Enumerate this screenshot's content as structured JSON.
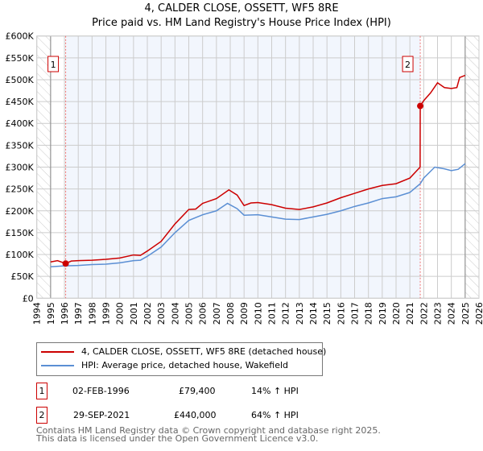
{
  "title": "4, CALDER CLOSE, OSSETT, WF5 8RE",
  "subtitle": "Price paid vs. HM Land Registry's House Price Index (HPI)",
  "chart_data": {
    "type": "line",
    "xlim": [
      1994,
      2026
    ],
    "ylim": [
      0,
      600000
    ],
    "x_ticks": [
      "1994",
      "1995",
      "1996",
      "1997",
      "1998",
      "1999",
      "2000",
      "2001",
      "2002",
      "2003",
      "2004",
      "2005",
      "2006",
      "2007",
      "2008",
      "2009",
      "2010",
      "2011",
      "2012",
      "2013",
      "2014",
      "2015",
      "2016",
      "2017",
      "2018",
      "2019",
      "2020",
      "2021",
      "2022",
      "2023",
      "2024",
      "2025",
      "2026"
    ],
    "y_ticks": [
      {
        "v": 0,
        "label": "£0"
      },
      {
        "v": 50000,
        "label": "£50K"
      },
      {
        "v": 100000,
        "label": "£100K"
      },
      {
        "v": 150000,
        "label": "£150K"
      },
      {
        "v": 200000,
        "label": "£200K"
      },
      {
        "v": 250000,
        "label": "£250K"
      },
      {
        "v": 300000,
        "label": "£300K"
      },
      {
        "v": 350000,
        "label": "£350K"
      },
      {
        "v": 400000,
        "label": "£400K"
      },
      {
        "v": 450000,
        "label": "£450K"
      },
      {
        "v": 500000,
        "label": "£500K"
      },
      {
        "v": 550000,
        "label": "£550K"
      },
      {
        "v": 600000,
        "label": "£600K"
      }
    ],
    "grid": true,
    "hatched_ranges": [
      [
        1994,
        1995
      ],
      [
        2025,
        2026
      ]
    ],
    "shaded_range": [
      1996.09,
      2021.75
    ],
    "series": [
      {
        "name": "4, CALDER CLOSE, OSSETT, WF5 8RE (detached house)",
        "color": "#cc0000",
        "x": [
          1995,
          1995.5,
          1996.09,
          1996.5,
          1997,
          1998,
          1999,
          2000,
          2001,
          2001.5,
          2002,
          2003,
          2004,
          2005,
          2005.5,
          2006,
          2007,
          2007.9,
          2008.5,
          2009,
          2009.5,
          2010,
          2011,
          2012,
          2013,
          2014,
          2015,
          2016,
          2017,
          2018,
          2019,
          2020,
          2021,
          2021.74,
          2021.75,
          2022,
          2022.5,
          2023,
          2023.5,
          2024,
          2024.4,
          2024.6,
          2025
        ],
        "y": [
          83000,
          86000,
          79400,
          85000,
          86000,
          87000,
          89000,
          92000,
          99000,
          98000,
          108000,
          130000,
          170000,
          203000,
          204000,
          217000,
          228000,
          248000,
          236000,
          212000,
          218000,
          219000,
          214000,
          206000,
          203000,
          209000,
          218000,
          230000,
          240000,
          250000,
          258000,
          262000,
          275000,
          300000,
          440000,
          452000,
          470000,
          493000,
          482000,
          480000,
          482000,
          505000,
          510000
        ]
      },
      {
        "name": "HPI: Average price, detached house, Wakefield",
        "color": "#5b8fd4",
        "x": [
          1995,
          1996,
          1997,
          1998,
          1999,
          2000,
          2001,
          2001.5,
          2002,
          2003,
          2004,
          2005,
          2006,
          2007,
          2007.8,
          2008.5,
          2009,
          2010,
          2011,
          2012,
          2013,
          2014,
          2015,
          2016,
          2017,
          2018,
          2019,
          2020,
          2021,
          2021.75,
          2022,
          2022.8,
          2023.5,
          2024,
          2024.5,
          2025
        ],
        "y": [
          72000,
          74000,
          75000,
          77000,
          78000,
          81000,
          86000,
          87000,
          96000,
          117000,
          150000,
          178000,
          191000,
          200000,
          217000,
          205000,
          190000,
          191000,
          186000,
          181000,
          180000,
          186000,
          192000,
          200000,
          210000,
          218000,
          228000,
          232000,
          242000,
          262000,
          275000,
          300000,
          296000,
          292000,
          295000,
          308000
        ]
      }
    ],
    "annotations": [
      {
        "label": "1",
        "x": 1996.09,
        "y": 79400
      },
      {
        "label": "2",
        "x": 2021.75,
        "y": 440000
      }
    ]
  },
  "legend": {
    "items": [
      {
        "label": "4, CALDER CLOSE, OSSETT, WF5 8RE (detached house)",
        "color": "#cc0000"
      },
      {
        "label": "HPI: Average price, detached house, Wakefield",
        "color": "#5b8fd4"
      }
    ]
  },
  "sales": [
    {
      "num": "1",
      "date": "02-FEB-1996",
      "price": "£79,400",
      "hpi": "14% ↑ HPI"
    },
    {
      "num": "2",
      "date": "29-SEP-2021",
      "price": "£440,000",
      "hpi": "64% ↑ HPI"
    }
  ],
  "footer": {
    "line1": "Contains HM Land Registry data © Crown copyright and database right 2025.",
    "line2": "This data is licensed under the Open Government Licence v3.0."
  }
}
